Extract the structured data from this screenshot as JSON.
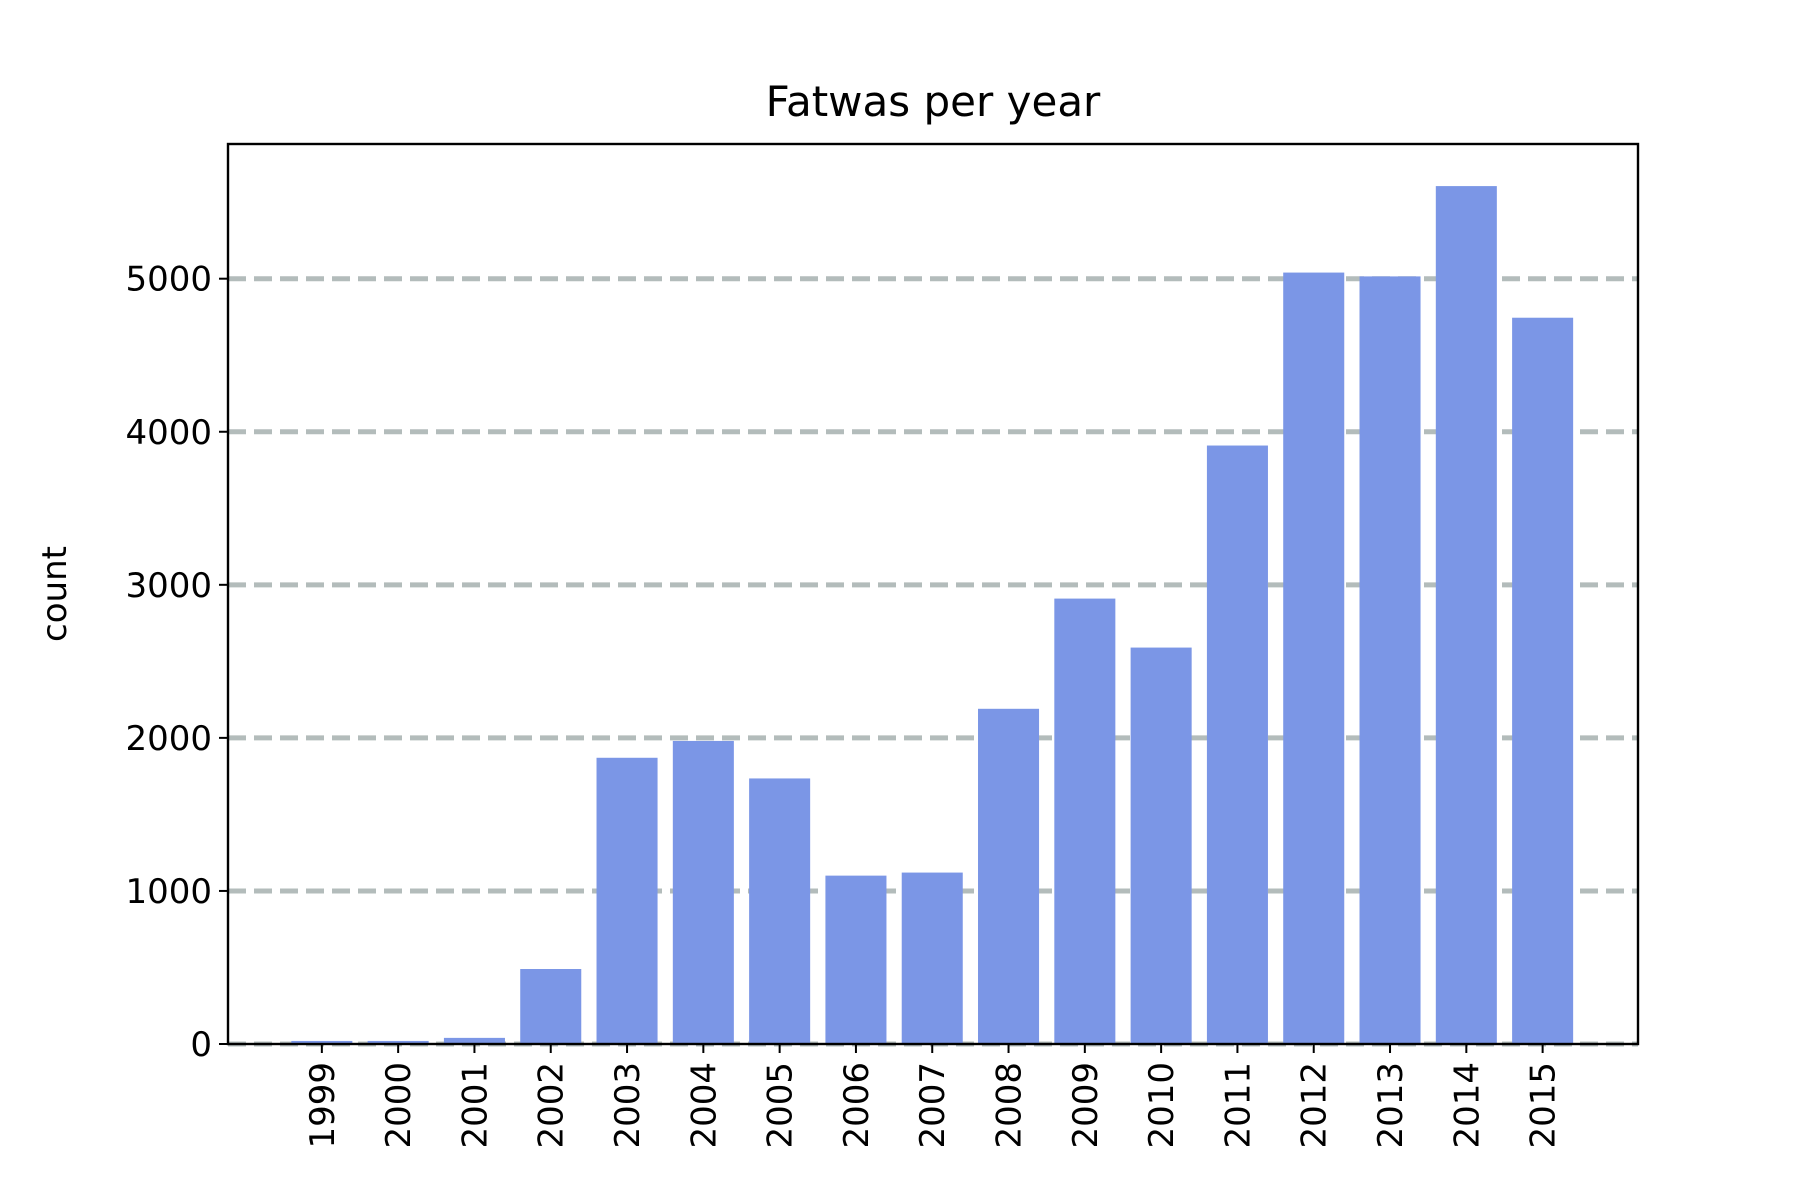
{
  "chart_data": {
    "type": "bar",
    "title": "Fatwas per year",
    "xlabel": "",
    "ylabel": "count",
    "categories": [
      "1999",
      "2000",
      "2001",
      "2002",
      "2003",
      "2004",
      "2005",
      "2006",
      "2007",
      "2008",
      "2009",
      "2010",
      "2011",
      "2012",
      "2013",
      "2014",
      "2015"
    ],
    "values": [
      20,
      20,
      40,
      490,
      1870,
      1980,
      1735,
      1100,
      1120,
      2190,
      2910,
      2590,
      3910,
      5040,
      5015,
      5605,
      4745
    ],
    "ylim": [
      0,
      5880
    ],
    "yticks": [
      0,
      1000,
      2000,
      3000,
      4000,
      5000
    ],
    "ytick_labels": [
      "0",
      "1000",
      "2000",
      "3000",
      "4000",
      "5000"
    ],
    "grid": "y dashed",
    "bar_color": "#7b96e6",
    "grid_color": "#b3bcbb"
  }
}
